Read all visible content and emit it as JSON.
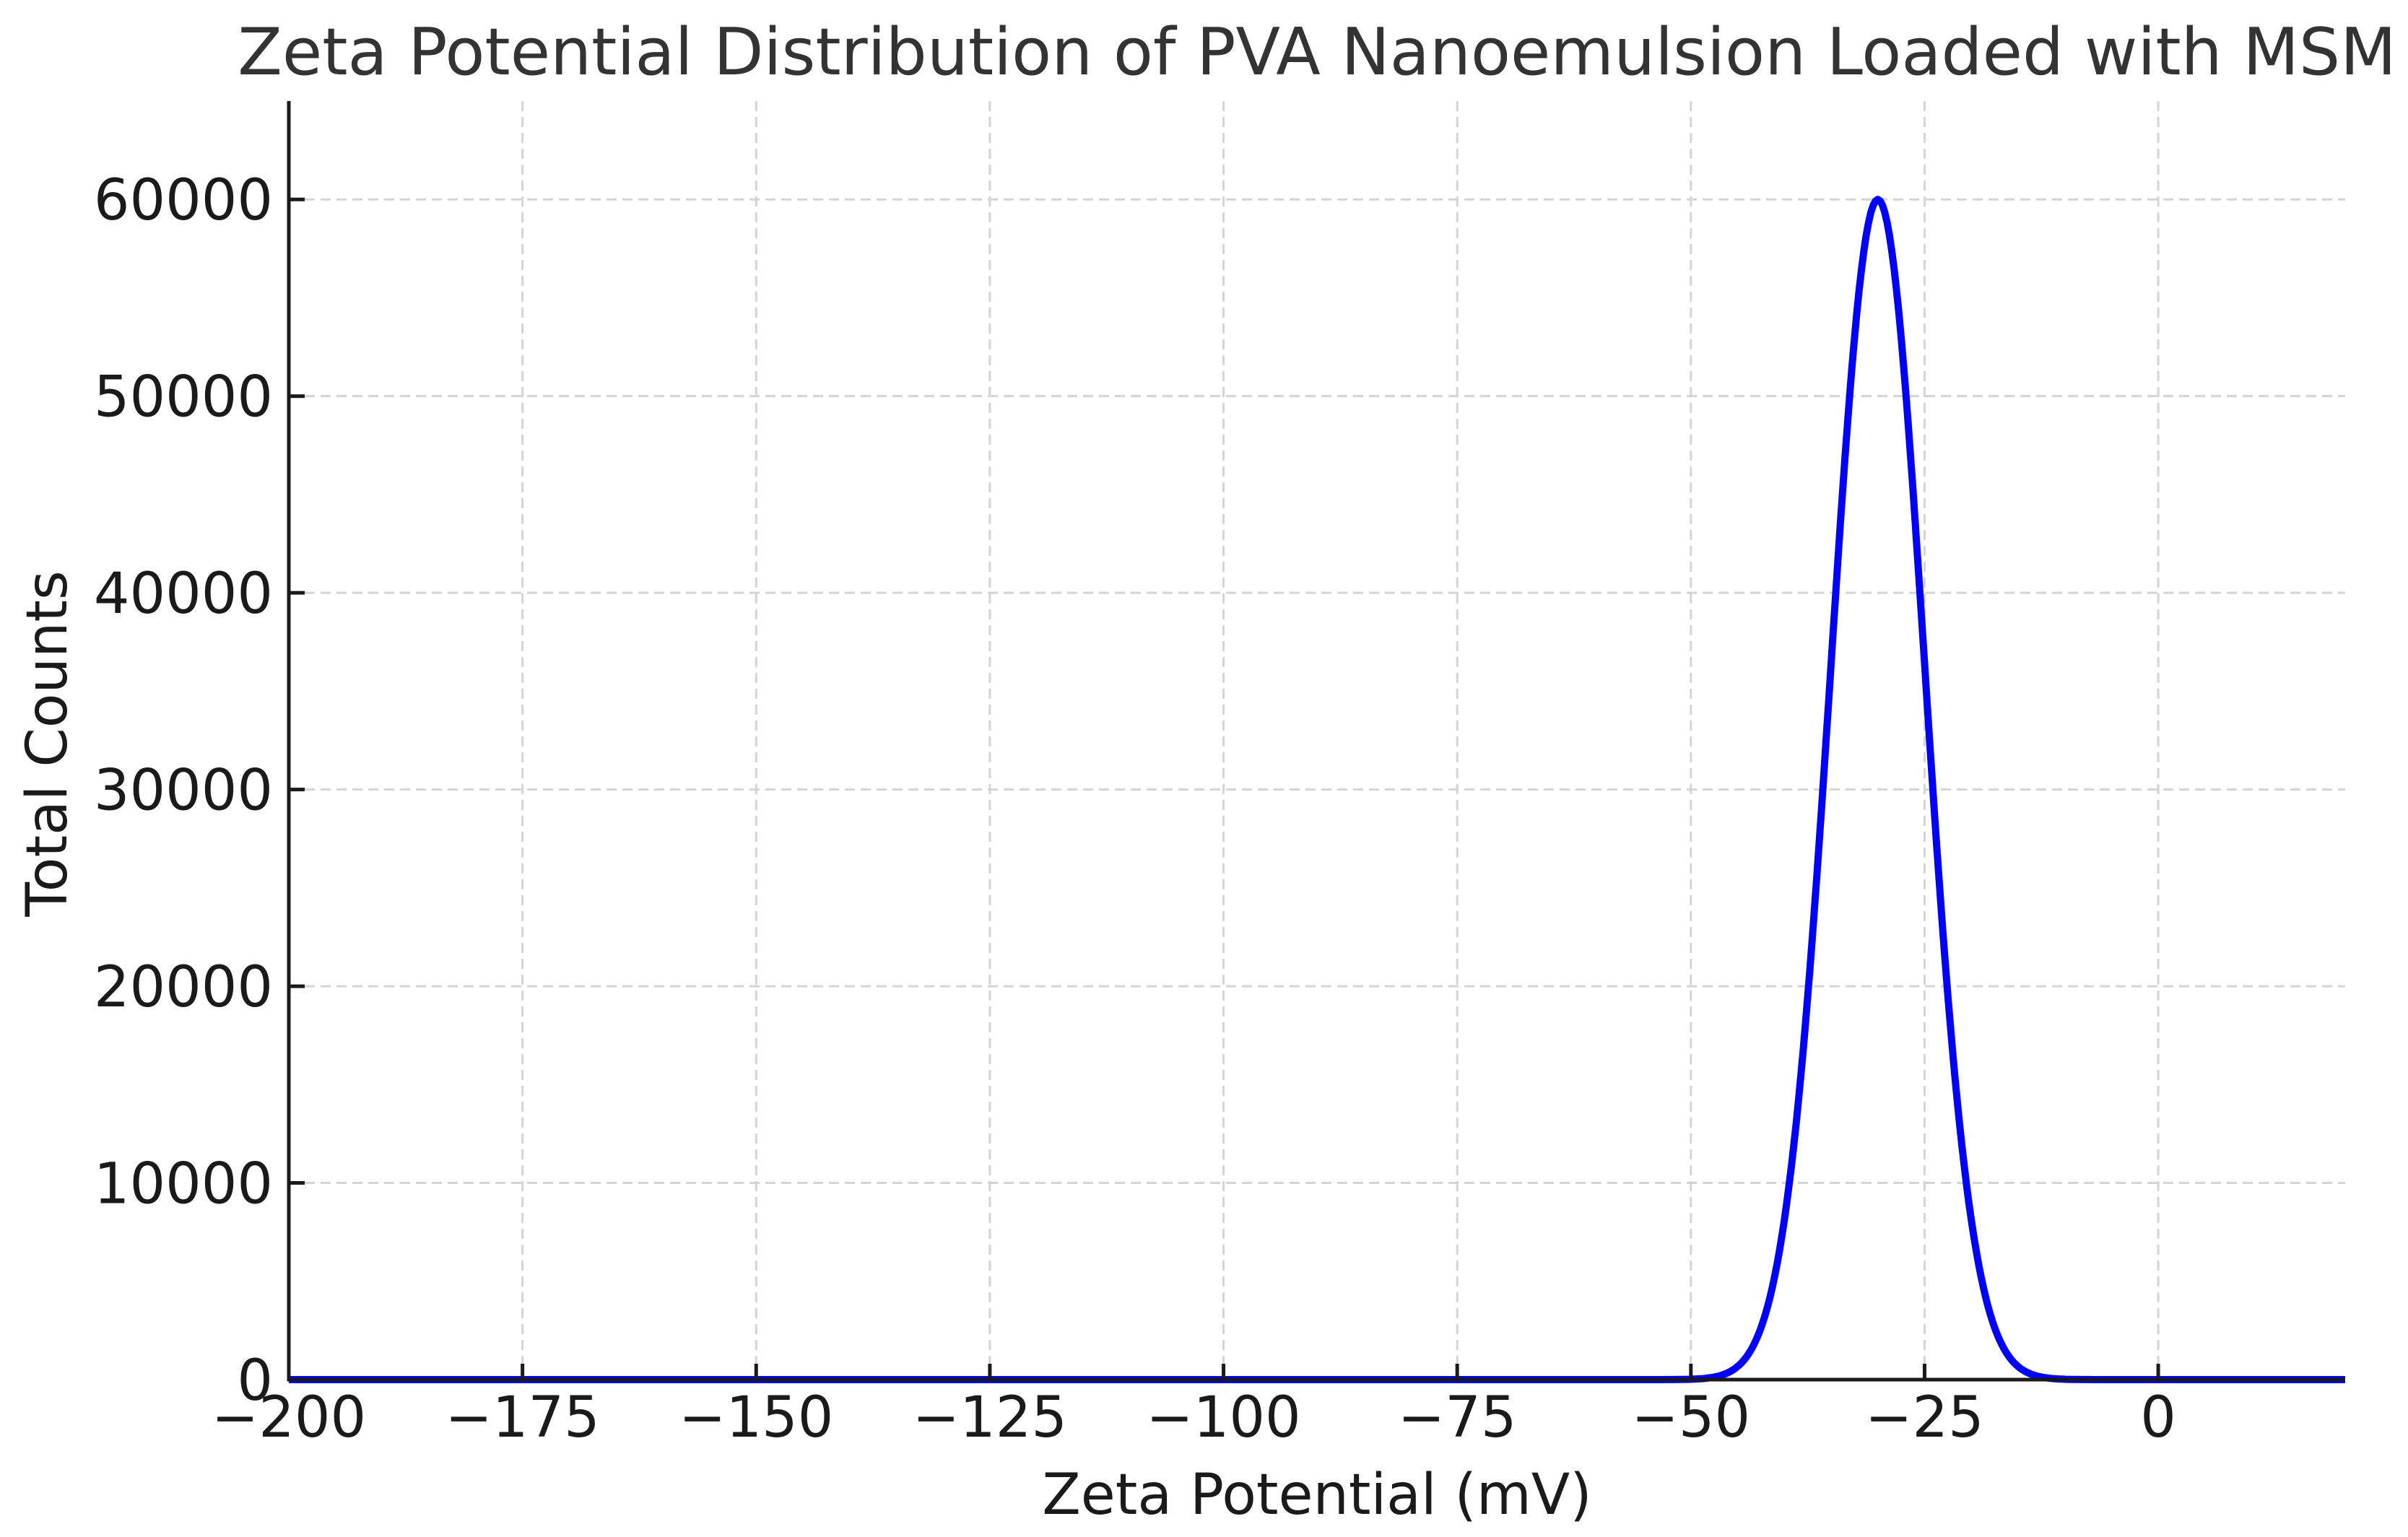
{
  "chart_data": {
    "type": "line",
    "title": "Zeta Potential Distribution of PVA Nanoemulsion Loaded with MSM",
    "xlabel": "Zeta Potential (mV)",
    "ylabel": "Total Counts",
    "xlim": [
      -200,
      20
    ],
    "ylim": [
      0,
      65000
    ],
    "x_ticks": [
      -200,
      -175,
      -150,
      -125,
      -100,
      -75,
      -50,
      -25,
      0
    ],
    "x_tick_labels": [
      "−200",
      "−175",
      "−150",
      "−125",
      "−100",
      "−75",
      "−50",
      "−25",
      "0"
    ],
    "y_ticks": [
      0,
      10000,
      20000,
      30000,
      40000,
      50000,
      60000
    ],
    "y_tick_labels": [
      "0",
      "10000",
      "20000",
      "30000",
      "40000",
      "50000",
      "60000"
    ],
    "grid": true,
    "legend": null,
    "series": [
      {
        "name": "Zeta potential distribution",
        "color": "#0000ff",
        "shape": "gaussian",
        "peak_x": -30,
        "peak_y": 60000,
        "sigma": 5,
        "x": [
          -200,
          -60,
          -50,
          -45,
          -42,
          -40,
          -38,
          -36,
          -34,
          -32,
          -30,
          -28,
          -26,
          -24,
          -22,
          -20,
          -18,
          -15,
          -10,
          0,
          20
        ],
        "y": [
          0,
          0,
          20,
          668,
          3404,
          8120,
          16523,
          29047,
          43675,
          55222,
          60000,
          55222,
          43675,
          29047,
          16523,
          8120,
          3404,
          668,
          20,
          0,
          0
        ]
      }
    ]
  }
}
